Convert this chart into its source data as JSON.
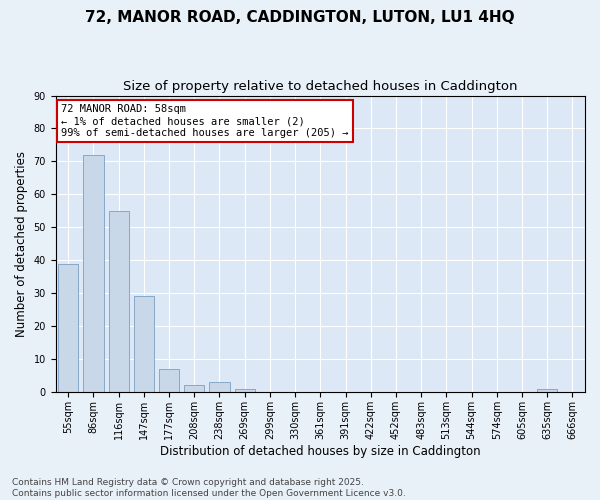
{
  "title_line1": "72, MANOR ROAD, CADDINGTON, LUTON, LU1 4HQ",
  "title_line2": "Size of property relative to detached houses in Caddington",
  "xlabel": "Distribution of detached houses by size in Caddington",
  "ylabel": "Number of detached properties",
  "categories": [
    "55sqm",
    "86sqm",
    "116sqm",
    "147sqm",
    "177sqm",
    "208sqm",
    "238sqm",
    "269sqm",
    "299sqm",
    "330sqm",
    "361sqm",
    "391sqm",
    "422sqm",
    "452sqm",
    "483sqm",
    "513sqm",
    "544sqm",
    "574sqm",
    "605sqm",
    "635sqm",
    "666sqm"
  ],
  "values": [
    39,
    72,
    55,
    29,
    7,
    2,
    3,
    1,
    0,
    0,
    0,
    0,
    0,
    0,
    0,
    0,
    0,
    0,
    0,
    1,
    0
  ],
  "bar_color": "#c8d8e8",
  "bar_edge_color": "#7a9fc0",
  "ylim": [
    0,
    90
  ],
  "yticks": [
    0,
    10,
    20,
    30,
    40,
    50,
    60,
    70,
    80,
    90
  ],
  "annotation_box_text": "72 MANOR ROAD: 58sqm\n← 1% of detached houses are smaller (2)\n99% of semi-detached houses are larger (205) →",
  "annotation_box_color": "#ffffff",
  "annotation_box_edge_color": "#cc0000",
  "background_color": "#e8f0f8",
  "plot_bg_color": "#dce8f5",
  "grid_color": "#ffffff",
  "footer_line1": "Contains HM Land Registry data © Crown copyright and database right 2025.",
  "footer_line2": "Contains public sector information licensed under the Open Government Licence v3.0.",
  "title_fontsize": 11,
  "subtitle_fontsize": 9.5,
  "axis_label_fontsize": 8.5,
  "tick_fontsize": 7,
  "annotation_fontsize": 7.5,
  "footer_fontsize": 6.5
}
